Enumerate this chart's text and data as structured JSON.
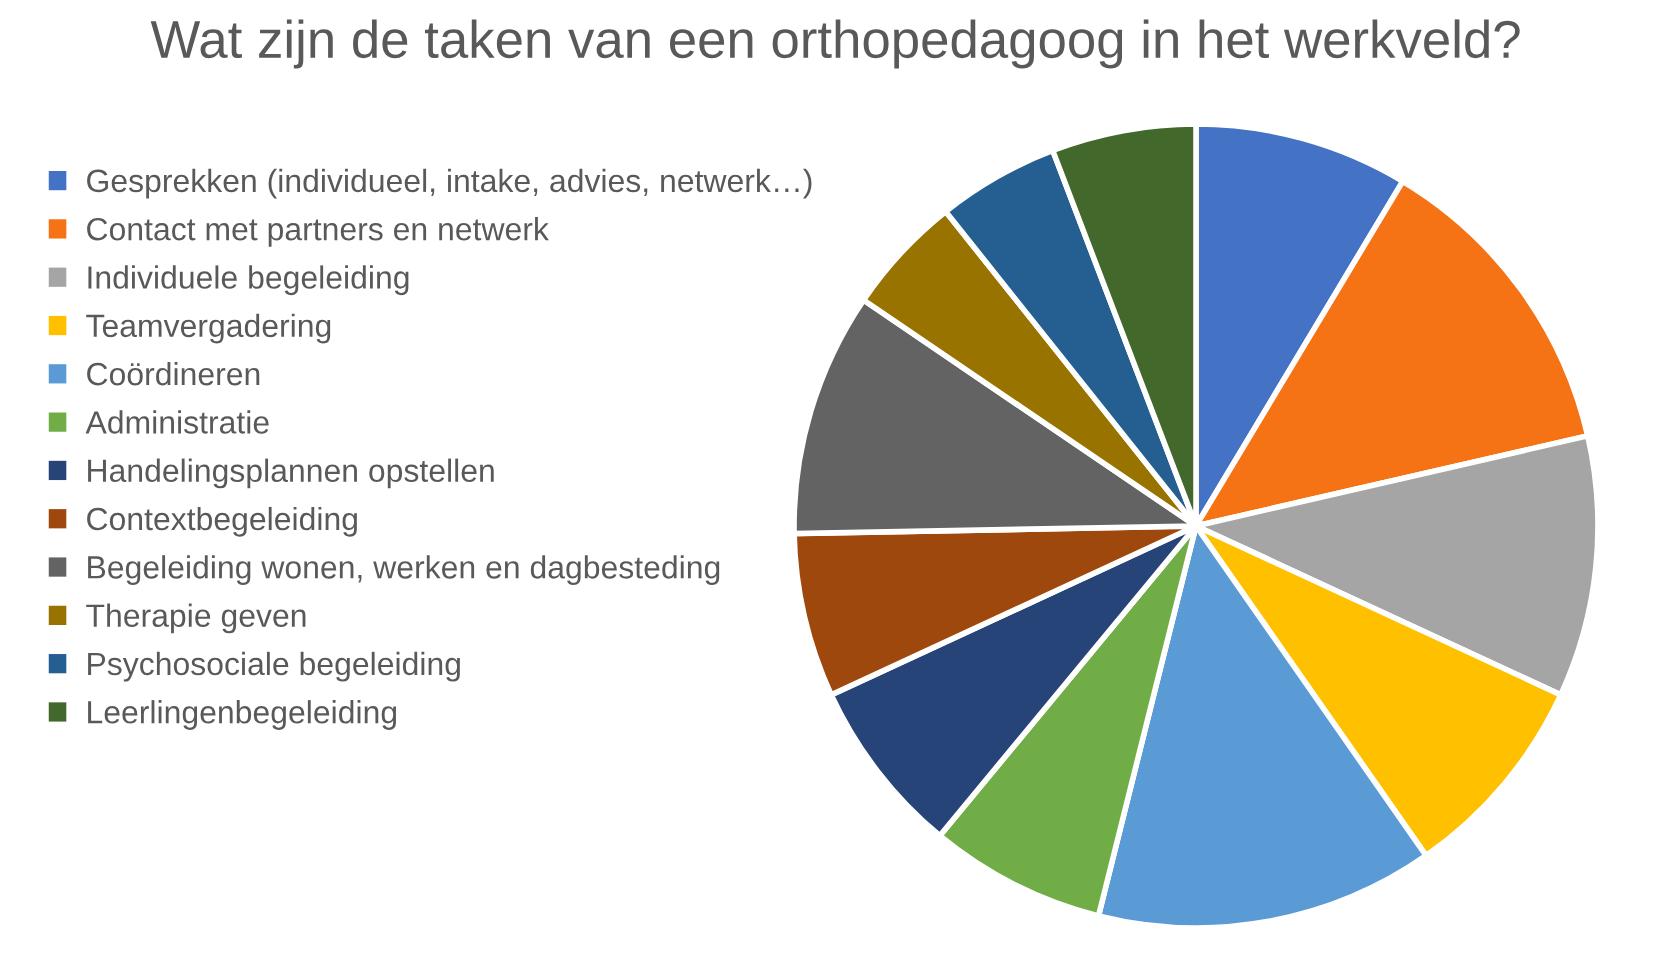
{
  "chart_data": {
    "type": "pie",
    "title": "Wat zijn de taken van een orthopedagoog in het werkveld?",
    "categories": [
      "Gesprekken (individueel, intake, advies, netwerk…)",
      "Contact met partners en netwerk",
      "Individuele begeleiding",
      "Teamvergadering",
      "Coördineren",
      "Administratie",
      "Handelingsplannen opstellen",
      "Contextbegeleiding",
      "Begeleiding wonen, werken en dagbesteding",
      "Therapie geven",
      "Psychosociale begeleiding",
      "Leerlingenbegeleiding"
    ],
    "values": [
      8.6,
      12.8,
      10.5,
      8.4,
      13.6,
      7.1,
      7.1,
      6.6,
      9.8,
      4.8,
      4.9,
      5.8
    ],
    "colors": [
      "#4472c4",
      "#f57314",
      "#a5a5a5",
      "#ffc000",
      "#5b9bd5",
      "#70ad47",
      "#264478",
      "#9e480e",
      "#636363",
      "#997300",
      "#255e91",
      "#43682b"
    ],
    "legend": "left"
  }
}
